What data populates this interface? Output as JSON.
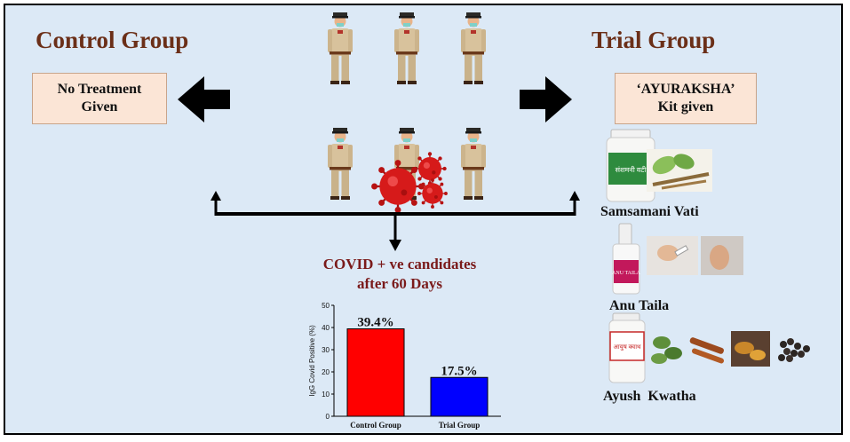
{
  "control": {
    "title": "Control Group",
    "box_line1": "No Treatment",
    "box_line2": "Given"
  },
  "trial": {
    "title": "Trial Group",
    "box_line1": "‘AYURAKSHA’",
    "box_line2": "Kit given"
  },
  "outcome": {
    "line1": "COVID + ve candidates",
    "line2": "after 60 Days"
  },
  "kit_items": [
    {
      "name": "Samsamani Vati",
      "bottle_label": "संशमनी वटी"
    },
    {
      "name": "Anu Taila",
      "bottle_label": "ANU TAILA"
    },
    {
      "name": "Ayush  Kwatha",
      "bottle_label": "आयुष क्वाथ"
    }
  ],
  "colors": {
    "background": "#dce9f6",
    "title": "#6b2f18",
    "box_fill": "#fbe5d6",
    "outcome_text": "#7a1a1a",
    "control_bar": "#ff0000",
    "trial_bar": "#0000ff",
    "virus": "#d61a1a"
  },
  "icons": [
    "police-officer-icon",
    "virus-icon",
    "bold-arrow-icon"
  ],
  "chart_data": {
    "type": "bar",
    "categories": [
      "Control Group",
      "Trial Group"
    ],
    "values": [
      39.4,
      17.5
    ],
    "data_labels": [
      "39.4%",
      "17.5%"
    ],
    "colors": [
      "#ff0000",
      "#0000ff"
    ],
    "ylabel": "IgG Covid Positive (%)",
    "ylim": [
      0,
      50
    ],
    "yticks": [
      0,
      10,
      20,
      30,
      40,
      50
    ],
    "grid": false
  }
}
